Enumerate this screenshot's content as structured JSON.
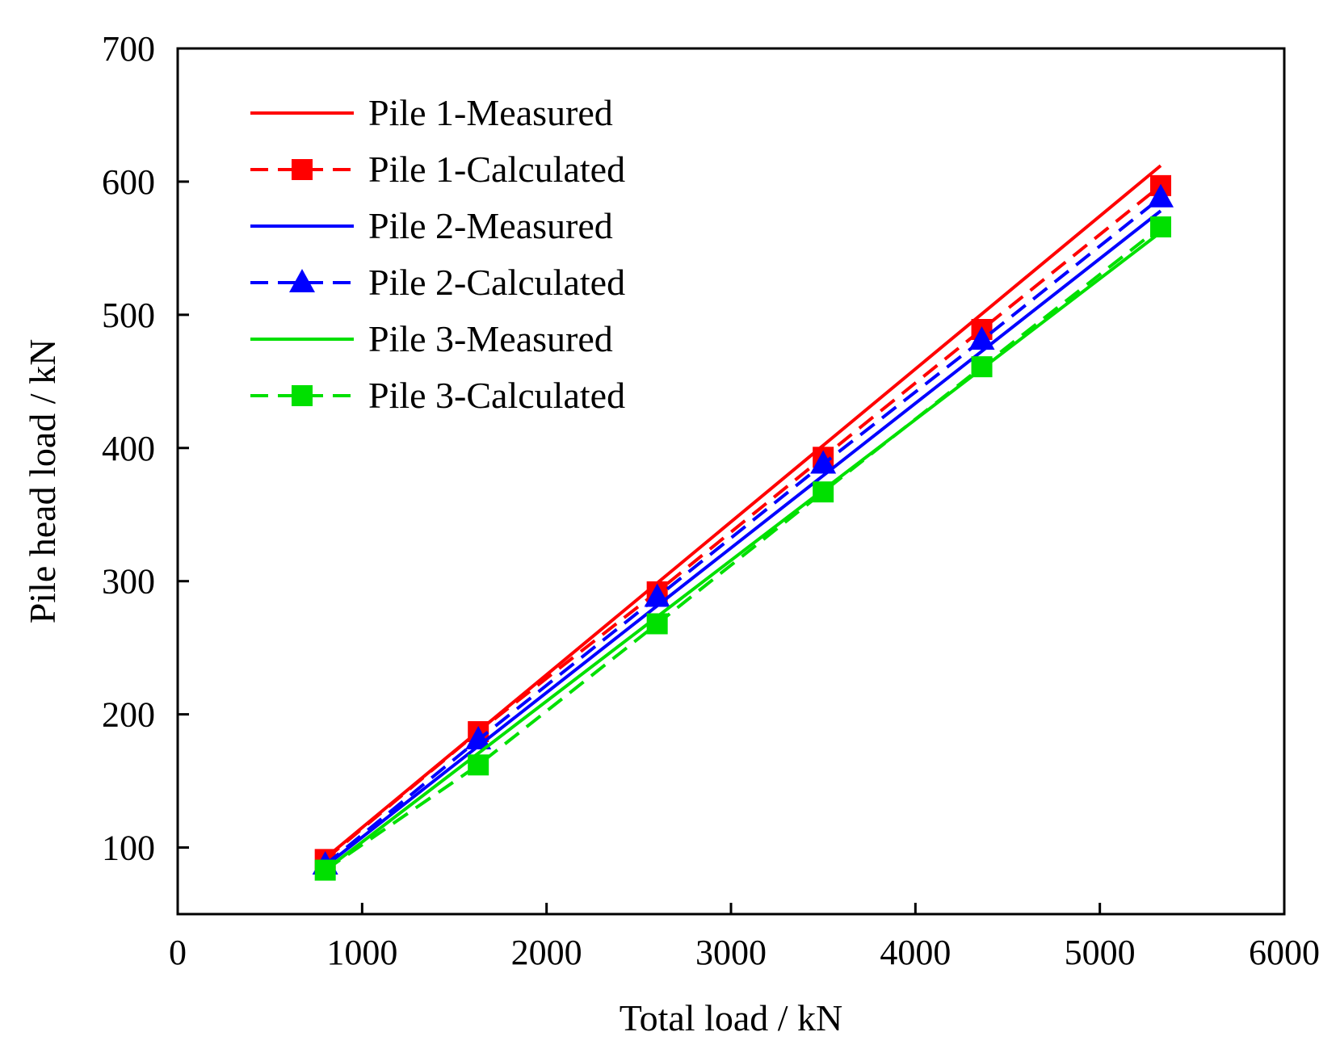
{
  "chart_data": {
    "type": "line",
    "title": "",
    "xlabel": "Total load / kN",
    "ylabel": "Pile head load / kN",
    "xlim": [
      0,
      6000
    ],
    "ylim": [
      50,
      700
    ],
    "xticks": [
      0,
      1000,
      2000,
      3000,
      4000,
      5000,
      6000
    ],
    "yticks": [
      100,
      200,
      300,
      400,
      500,
      600,
      700
    ],
    "grid": false,
    "legend_position": "top-left",
    "series": [
      {
        "name": "Pile 1-Measured",
        "color": "#ff0000",
        "dashed": false,
        "marker": "none",
        "x": [
          800,
          5330
        ],
        "y": [
          92,
          612
        ]
      },
      {
        "name": "Pile 1-Calculated",
        "color": "#ff0000",
        "dashed": true,
        "marker": "square",
        "x": [
          800,
          1630,
          2600,
          3500,
          4360,
          5330
        ],
        "y": [
          91,
          187,
          292,
          393,
          489,
          597
        ]
      },
      {
        "name": "Pile 2-Measured",
        "color": "#0000ff",
        "dashed": false,
        "marker": "none",
        "x": [
          800,
          5330
        ],
        "y": [
          86,
          578
        ]
      },
      {
        "name": "Pile 2-Calculated",
        "color": "#0000ff",
        "dashed": true,
        "marker": "triangle",
        "x": [
          800,
          1630,
          2600,
          3500,
          4360,
          5330
        ],
        "y": [
          87,
          181,
          288,
          388,
          481,
          588
        ]
      },
      {
        "name": "Pile 3-Measured",
        "color": "#00e000",
        "dashed": false,
        "marker": "none",
        "x": [
          800,
          5330
        ],
        "y": [
          83,
          562
        ]
      },
      {
        "name": "Pile 3-Calculated",
        "color": "#00e000",
        "dashed": true,
        "marker": "square",
        "x": [
          800,
          1630,
          2600,
          3500,
          4360,
          5330
        ],
        "y": [
          83,
          162,
          268,
          367,
          461,
          566
        ]
      }
    ]
  }
}
